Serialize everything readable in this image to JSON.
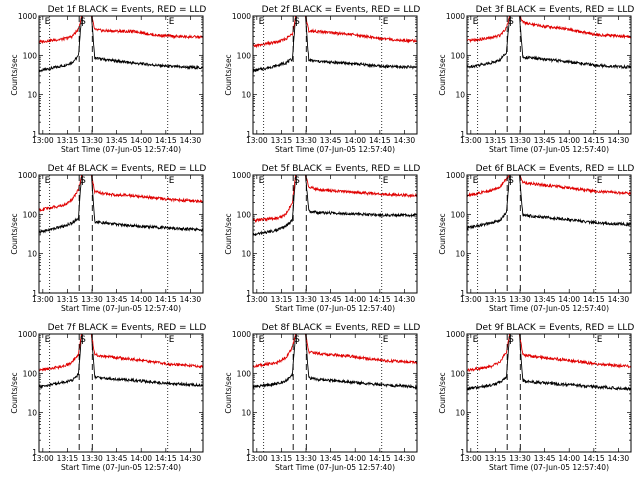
{
  "figure": {
    "x_tick_labels": [
      "13:00",
      "13:15",
      "13:30",
      "13:45",
      "14:00",
      "14:15",
      "14:30"
    ],
    "x_label": "Start Time (07-Jun-05 12:57:40)",
    "y_label": "Counts/sec",
    "y_tick_labels": [
      "1",
      "10",
      "100",
      "1000"
    ],
    "markers": {
      "start": "E",
      "saa": "S",
      "end": "E"
    }
  },
  "chart_data": [
    {
      "type": "line",
      "title": "Det 1f BLACK = Events, RED = LLD",
      "x_unit": "minutes after 12:57:40",
      "xlim": [
        0,
        100
      ],
      "ylim": [
        1,
        1000
      ],
      "y_scale": "log",
      "series": [
        {
          "name": "Events",
          "color": "#000000",
          "points": [
            [
              0,
              40
            ],
            [
              15,
              55
            ],
            [
              20,
              65
            ],
            [
              24,
              95
            ],
            [
              26,
              1000
            ],
            [
              32,
              1000
            ],
            [
              34,
              85
            ],
            [
              40,
              78
            ],
            [
              60,
              62
            ],
            [
              80,
              52
            ],
            [
              100,
              48
            ]
          ]
        },
        {
          "name": "LLD",
          "color": "#e00000",
          "points": [
            [
              0,
              220
            ],
            [
              15,
              260
            ],
            [
              20,
              300
            ],
            [
              24,
              450
            ],
            [
              26,
              1000
            ],
            [
              32,
              1000
            ],
            [
              34,
              450
            ],
            [
              40,
              420
            ],
            [
              60,
              400
            ],
            [
              70,
              330
            ],
            [
              85,
              300
            ],
            [
              100,
              290
            ]
          ]
        }
      ],
      "vlines": {
        "dotted": [
          6.5,
          78.5
        ],
        "dashed": [
          24.5,
          32.5
        ],
        "solid": [
          26.5
        ]
      }
    },
    {
      "type": "line",
      "title": "Det 2f BLACK = Events, RED = LLD",
      "x_unit": "minutes after 12:57:40",
      "xlim": [
        0,
        100
      ],
      "ylim": [
        1,
        1000
      ],
      "y_scale": "log",
      "series": [
        {
          "name": "Events",
          "color": "#000000",
          "points": [
            [
              0,
              40
            ],
            [
              15,
              55
            ],
            [
              20,
              65
            ],
            [
              24,
              80
            ],
            [
              26,
              1000
            ],
            [
              32,
              1000
            ],
            [
              34,
              75
            ],
            [
              40,
              70
            ],
            [
              60,
              62
            ],
            [
              80,
              52
            ],
            [
              100,
              50
            ]
          ]
        },
        {
          "name": "LLD",
          "color": "#e00000",
          "points": [
            [
              0,
              170
            ],
            [
              15,
              220
            ],
            [
              20,
              260
            ],
            [
              24,
              350
            ],
            [
              26,
              1000
            ],
            [
              32,
              1000
            ],
            [
              34,
              420
            ],
            [
              40,
              400
            ],
            [
              60,
              340
            ],
            [
              80,
              260
            ],
            [
              100,
              230
            ]
          ]
        }
      ],
      "vlines": {
        "dotted": [
          6.5,
          78.5
        ],
        "dashed": [
          24.5,
          32.5
        ],
        "solid": [
          26.5
        ]
      }
    },
    {
      "type": "line",
      "title": "Det 3f BLACK = Events, RED = LLD",
      "x_unit": "minutes after 12:57:40",
      "xlim": [
        0,
        100
      ],
      "ylim": [
        1,
        1000
      ],
      "y_scale": "log",
      "series": [
        {
          "name": "Events",
          "color": "#000000",
          "points": [
            [
              0,
              50
            ],
            [
              15,
              65
            ],
            [
              20,
              75
            ],
            [
              24,
              120
            ],
            [
              26,
              1000
            ],
            [
              32,
              1000
            ],
            [
              34,
              90
            ],
            [
              40,
              85
            ],
            [
              60,
              70
            ],
            [
              80,
              55
            ],
            [
              100,
              50
            ]
          ]
        },
        {
          "name": "LLD",
          "color": "#e00000",
          "points": [
            [
              0,
              230
            ],
            [
              15,
              280
            ],
            [
              20,
              320
            ],
            [
              24,
              500
            ],
            [
              26,
              1000
            ],
            [
              32,
              1000
            ],
            [
              34,
              700
            ],
            [
              40,
              600
            ],
            [
              60,
              470
            ],
            [
              80,
              330
            ],
            [
              100,
              300
            ]
          ]
        }
      ],
      "vlines": {
        "dotted": [
          6.5,
          78.5
        ],
        "dashed": [
          24.5,
          32.5
        ],
        "solid": [
          26.5
        ]
      }
    },
    {
      "type": "line",
      "title": "Det 4f BLACK = Events, RED = LLD",
      "x_unit": "minutes after 12:57:40",
      "xlim": [
        0,
        100
      ],
      "ylim": [
        1,
        1000
      ],
      "y_scale": "log",
      "series": [
        {
          "name": "Events",
          "color": "#000000",
          "points": [
            [
              0,
              35
            ],
            [
              15,
              50
            ],
            [
              20,
              60
            ],
            [
              24,
              80
            ],
            [
              26,
              1000
            ],
            [
              32,
              1000
            ],
            [
              34,
              65
            ],
            [
              40,
              60
            ],
            [
              60,
              50
            ],
            [
              80,
              45
            ],
            [
              100,
              40
            ]
          ]
        },
        {
          "name": "LLD",
          "color": "#e00000",
          "points": [
            [
              0,
              130
            ],
            [
              15,
              170
            ],
            [
              20,
              230
            ],
            [
              24,
              420
            ],
            [
              26,
              1000
            ],
            [
              32,
              1000
            ],
            [
              34,
              380
            ],
            [
              40,
              330
            ],
            [
              60,
              290
            ],
            [
              80,
              240
            ],
            [
              100,
              210
            ]
          ]
        }
      ],
      "vlines": {
        "dotted": [
          6.5,
          78.5
        ],
        "dashed": [
          24.5,
          32.5
        ],
        "solid": [
          26.5
        ]
      }
    },
    {
      "type": "line",
      "title": "Det 5f BLACK = Events, RED = LLD",
      "x_unit": "minutes after 12:57:40",
      "xlim": [
        0,
        100
      ],
      "ylim": [
        1,
        1000
      ],
      "y_scale": "log",
      "series": [
        {
          "name": "Events",
          "color": "#000000",
          "points": [
            [
              0,
              30
            ],
            [
              15,
              40
            ],
            [
              20,
              50
            ],
            [
              24,
              70
            ],
            [
              26,
              1000
            ],
            [
              32,
              1000
            ],
            [
              34,
              120
            ],
            [
              40,
              110
            ],
            [
              60,
              105
            ],
            [
              80,
              95
            ],
            [
              100,
              95
            ]
          ]
        },
        {
          "name": "LLD",
          "color": "#e00000",
          "points": [
            [
              0,
              70
            ],
            [
              15,
              80
            ],
            [
              20,
              100
            ],
            [
              24,
              200
            ],
            [
              26,
              1000
            ],
            [
              32,
              1000
            ],
            [
              34,
              500
            ],
            [
              40,
              420
            ],
            [
              60,
              370
            ],
            [
              80,
              320
            ],
            [
              100,
              300
            ]
          ]
        }
      ],
      "vlines": {
        "dotted": [
          6.5,
          78.5
        ],
        "dashed": [
          24.5,
          32.5
        ],
        "solid": [
          26.5
        ]
      }
    },
    {
      "type": "line",
      "title": "Det 6f BLACK = Events, RED = LLD",
      "x_unit": "minutes after 12:57:40",
      "xlim": [
        0,
        100
      ],
      "ylim": [
        1,
        1000
      ],
      "y_scale": "log",
      "series": [
        {
          "name": "Events",
          "color": "#000000",
          "points": [
            [
              0,
              45
            ],
            [
              15,
              60
            ],
            [
              20,
              70
            ],
            [
              24,
              110
            ],
            [
              26,
              1000
            ],
            [
              32,
              1000
            ],
            [
              34,
              95
            ],
            [
              40,
              90
            ],
            [
              60,
              75
            ],
            [
              80,
              60
            ],
            [
              100,
              55
            ]
          ]
        },
        {
          "name": "LLD",
          "color": "#e00000",
          "points": [
            [
              0,
              300
            ],
            [
              15,
              400
            ],
            [
              20,
              500
            ],
            [
              24,
              800
            ],
            [
              26,
              1000
            ],
            [
              32,
              1000
            ],
            [
              34,
              650
            ],
            [
              40,
              600
            ],
            [
              60,
              480
            ],
            [
              80,
              380
            ],
            [
              100,
              340
            ]
          ]
        }
      ],
      "vlines": {
        "dotted": [
          6.5,
          78.5
        ],
        "dashed": [
          24.5,
          32.5
        ],
        "solid": [
          26.5
        ]
      }
    },
    {
      "type": "line",
      "title": "Det 7f BLACK = Events, RED = LLD",
      "x_unit": "minutes after 12:57:40",
      "xlim": [
        0,
        100
      ],
      "ylim": [
        1,
        1000
      ],
      "y_scale": "log",
      "series": [
        {
          "name": "Events",
          "color": "#000000",
          "points": [
            [
              0,
              45
            ],
            [
              15,
              60
            ],
            [
              20,
              65
            ],
            [
              24,
              95
            ],
            [
              26,
              1000
            ],
            [
              32,
              1000
            ],
            [
              34,
              80
            ],
            [
              40,
              75
            ],
            [
              60,
              65
            ],
            [
              80,
              55
            ],
            [
              100,
              50
            ]
          ]
        },
        {
          "name": "LLD",
          "color": "#e00000",
          "points": [
            [
              0,
              120
            ],
            [
              15,
              150
            ],
            [
              20,
              190
            ],
            [
              24,
              300
            ],
            [
              26,
              1000
            ],
            [
              32,
              1000
            ],
            [
              34,
              300
            ],
            [
              40,
              270
            ],
            [
              60,
              220
            ],
            [
              80,
              170
            ],
            [
              100,
              150
            ]
          ]
        }
      ],
      "vlines": {
        "dotted": [
          6.5,
          78.5
        ],
        "dashed": [
          24.5,
          32.5
        ],
        "solid": [
          26.5
        ]
      }
    },
    {
      "type": "line",
      "title": "Det 8f BLACK = Events, RED = LLD",
      "x_unit": "minutes after 12:57:40",
      "xlim": [
        0,
        100
      ],
      "ylim": [
        1,
        1000
      ],
      "y_scale": "log",
      "series": [
        {
          "name": "Events",
          "color": "#000000",
          "points": [
            [
              0,
              45
            ],
            [
              15,
              55
            ],
            [
              20,
              65
            ],
            [
              24,
              95
            ],
            [
              26,
              1000
            ],
            [
              32,
              1000
            ],
            [
              34,
              75
            ],
            [
              40,
              70
            ],
            [
              60,
              60
            ],
            [
              80,
              50
            ],
            [
              100,
              45
            ]
          ]
        },
        {
          "name": "LLD",
          "color": "#e00000",
          "points": [
            [
              0,
              150
            ],
            [
              15,
              190
            ],
            [
              20,
              250
            ],
            [
              24,
              450
            ],
            [
              26,
              1000
            ],
            [
              32,
              1000
            ],
            [
              34,
              350
            ],
            [
              40,
              320
            ],
            [
              60,
              270
            ],
            [
              80,
              210
            ],
            [
              100,
              190
            ]
          ]
        }
      ],
      "vlines": {
        "dotted": [
          6.5,
          78.5
        ],
        "dashed": [
          24.5,
          32.5
        ],
        "solid": [
          26.5
        ]
      }
    },
    {
      "type": "line",
      "title": "Det 9f BLACK = Events, RED = LLD",
      "x_unit": "minutes after 12:57:40",
      "xlim": [
        0,
        100
      ],
      "ylim": [
        1,
        1000
      ],
      "y_scale": "log",
      "series": [
        {
          "name": "Events",
          "color": "#000000",
          "points": [
            [
              0,
              40
            ],
            [
              15,
              50
            ],
            [
              20,
              60
            ],
            [
              24,
              80
            ],
            [
              26,
              1000
            ],
            [
              32,
              1000
            ],
            [
              34,
              65
            ],
            [
              40,
              60
            ],
            [
              60,
              52
            ],
            [
              80,
              45
            ],
            [
              100,
              40
            ]
          ]
        },
        {
          "name": "LLD",
          "color": "#e00000",
          "points": [
            [
              0,
              120
            ],
            [
              15,
              150
            ],
            [
              20,
              190
            ],
            [
              24,
              350
            ],
            [
              26,
              1000
            ],
            [
              32,
              1000
            ],
            [
              34,
              300
            ],
            [
              40,
              270
            ],
            [
              60,
              220
            ],
            [
              80,
              170
            ],
            [
              100,
              150
            ]
          ]
        }
      ],
      "vlines": {
        "dotted": [
          6.5,
          78.5
        ],
        "dashed": [
          24.5,
          32.5
        ],
        "solid": [
          26.5
        ]
      }
    }
  ]
}
